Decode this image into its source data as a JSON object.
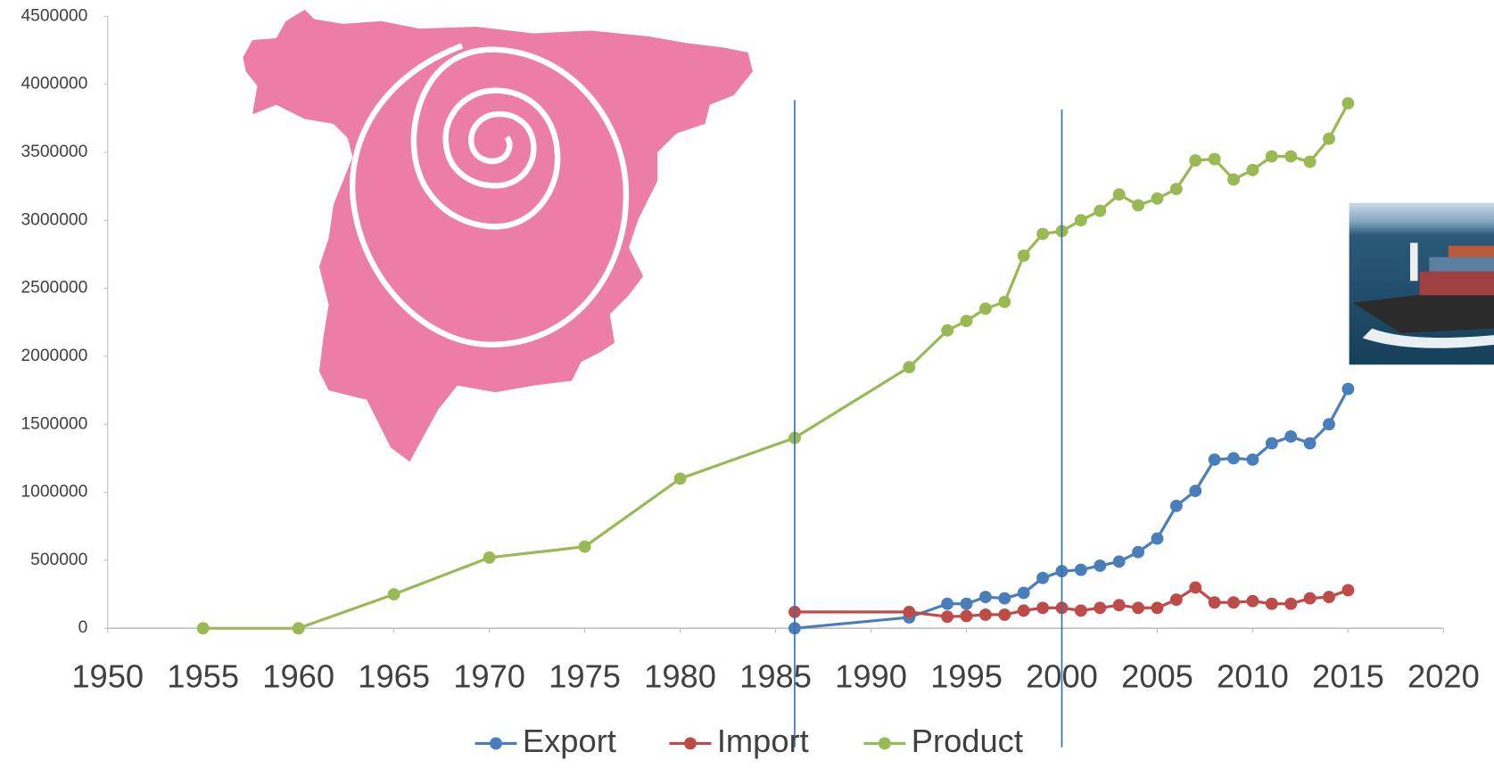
{
  "chart_data": {
    "type": "line",
    "xlim": [
      1950,
      2020
    ],
    "xticks": [
      1950,
      1955,
      1960,
      1965,
      1970,
      1975,
      1980,
      1985,
      1990,
      1995,
      2000,
      2005,
      2010,
      2015,
      2020
    ],
    "ylim": [
      0,
      4500000
    ],
    "yticks": [
      0,
      500000,
      1000000,
      1500000,
      2000000,
      2500000,
      3000000,
      3500000,
      4000000,
      4500000
    ],
    "vlines": [
      1986,
      2000
    ],
    "vline_color": "#2e6db4",
    "legend": "bottom",
    "series": [
      {
        "name": "Export",
        "color": "#4a7ebb",
        "x": [
          1986,
          1992,
          1994,
          1995,
          1996,
          1997,
          1998,
          1999,
          2000,
          2001,
          2002,
          2003,
          2004,
          2005,
          2006,
          2007,
          2008,
          2009,
          2010,
          2011,
          2012,
          2013,
          2014,
          2015
        ],
        "values": [
          0,
          80000,
          180000,
          180000,
          230000,
          220000,
          260000,
          370000,
          420000,
          430000,
          460000,
          490000,
          560000,
          660000,
          900000,
          1010000,
          1240000,
          1250000,
          1240000,
          1360000,
          1410000,
          1360000,
          1500000,
          1760000
        ]
      },
      {
        "name": "Import",
        "color": "#be4b48",
        "x": [
          1986,
          1992,
          1994,
          1995,
          1996,
          1997,
          1998,
          1999,
          2000,
          2001,
          2002,
          2003,
          2004,
          2005,
          2006,
          2007,
          2008,
          2009,
          2010,
          2011,
          2012,
          2013,
          2014,
          2015
        ],
        "values": [
          120000,
          120000,
          85000,
          90000,
          100000,
          100000,
          130000,
          150000,
          150000,
          130000,
          150000,
          170000,
          150000,
          150000,
          210000,
          300000,
          190000,
          190000,
          200000,
          180000,
          180000,
          220000,
          230000,
          280000
        ]
      },
      {
        "name": "Product",
        "color": "#98b954",
        "x": [
          1955,
          1960,
          1965,
          1970,
          1975,
          1980,
          1986,
          1992,
          1994,
          1995,
          1996,
          1997,
          1998,
          1999,
          2000,
          2001,
          2002,
          2003,
          2004,
          2005,
          2006,
          2007,
          2008,
          2009,
          2010,
          2011,
          2012,
          2013,
          2014,
          2015
        ],
        "values": [
          0,
          0,
          250000,
          520000,
          600000,
          1100000,
          1400000,
          1920000,
          2190000,
          2260000,
          2350000,
          2400000,
          2740000,
          2900000,
          2920000,
          3000000,
          3070000,
          3190000,
          3110000,
          3160000,
          3230000,
          3440000,
          3450000,
          3300000,
          3370000,
          3470000,
          3470000,
          3430000,
          3600000,
          3860000
        ]
      }
    ]
  }
}
